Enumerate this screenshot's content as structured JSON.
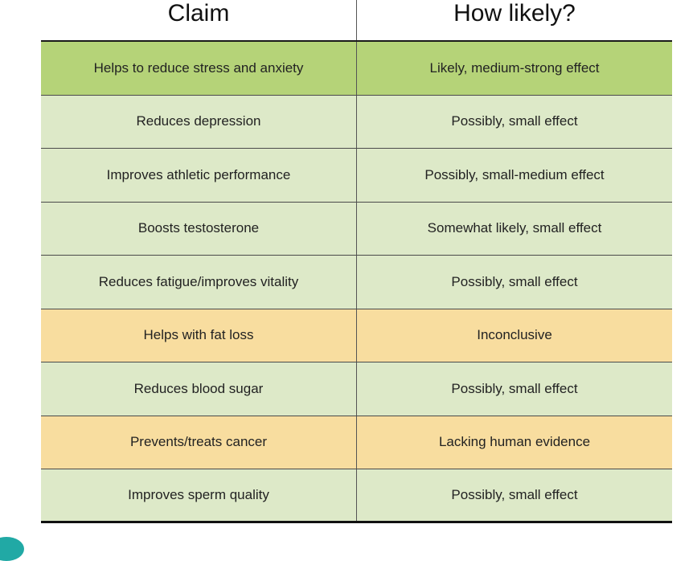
{
  "headers": {
    "claim": "Claim",
    "likely": "How likely?"
  },
  "rows": [
    {
      "claim": "Helps to reduce stress and anxiety",
      "likely": "Likely, medium-strong effect",
      "level": "strong"
    },
    {
      "claim": "Reduces depression",
      "likely": "Possibly, small effect",
      "level": "mild"
    },
    {
      "claim": "Improves athletic performance",
      "likely": "Possibly, small-medium effect",
      "level": "mild"
    },
    {
      "claim": "Boosts testosterone",
      "likely": "Somewhat likely, small effect",
      "level": "mild"
    },
    {
      "claim": "Reduces fatigue/improves vitality",
      "likely": "Possibly, small effect",
      "level": "mild"
    },
    {
      "claim": "Helps with fat loss",
      "likely": "Inconclusive",
      "level": "warn"
    },
    {
      "claim": "Reduces blood sugar",
      "likely": "Possibly, small effect",
      "level": "mild"
    },
    {
      "claim": "Prevents/treats cancer",
      "likely": "Lacking human evidence",
      "level": "warn"
    },
    {
      "claim": "Improves sperm quality",
      "likely": "Possibly, small effect",
      "level": "mild"
    }
  ],
  "colors": {
    "strong": "#b5d378",
    "mild": "#dde9c8",
    "warn": "#f8dd9f",
    "accent": "#21a9a5"
  }
}
